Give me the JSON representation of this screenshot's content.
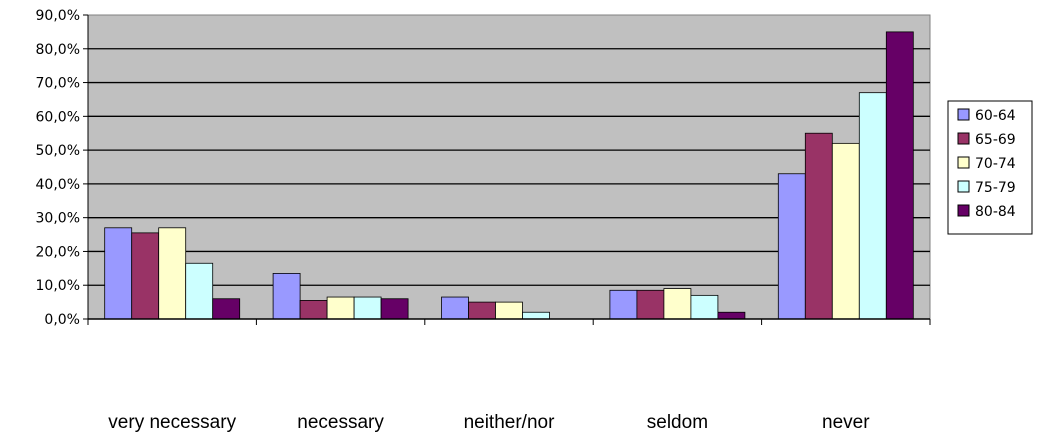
{
  "chart_data": {
    "type": "bar",
    "categories": [
      "very necessary",
      "necessary",
      "neither/nor",
      "seldom",
      "never"
    ],
    "series": [
      {
        "name": "60-64",
        "values": [
          27.0,
          13.5,
          6.5,
          8.5,
          43.0
        ],
        "color": "#9999ff"
      },
      {
        "name": "65-69",
        "values": [
          25.5,
          5.5,
          5.0,
          8.5,
          55.0
        ],
        "color": "#993366"
      },
      {
        "name": "70-74",
        "values": [
          27.0,
          6.5,
          5.0,
          9.0,
          52.0
        ],
        "color": "#ffffcc"
      },
      {
        "name": "75-79",
        "values": [
          16.5,
          6.5,
          2.0,
          7.0,
          67.0
        ],
        "color": "#ccffff"
      },
      {
        "name": "80-84",
        "values": [
          6.0,
          6.0,
          0.0,
          2.0,
          85.0
        ],
        "color": "#660066"
      }
    ],
    "yticks": [
      "0,0%",
      "10,0%",
      "20,0%",
      "30,0%",
      "40,0%",
      "50,0%",
      "60,0%",
      "70,0%",
      "80,0%",
      "90,0%"
    ],
    "ylim": [
      0,
      90
    ],
    "grid": true,
    "plot_background": "#c0c0c0",
    "legend_position": "right",
    "title": "",
    "xlabel": "",
    "ylabel": ""
  }
}
